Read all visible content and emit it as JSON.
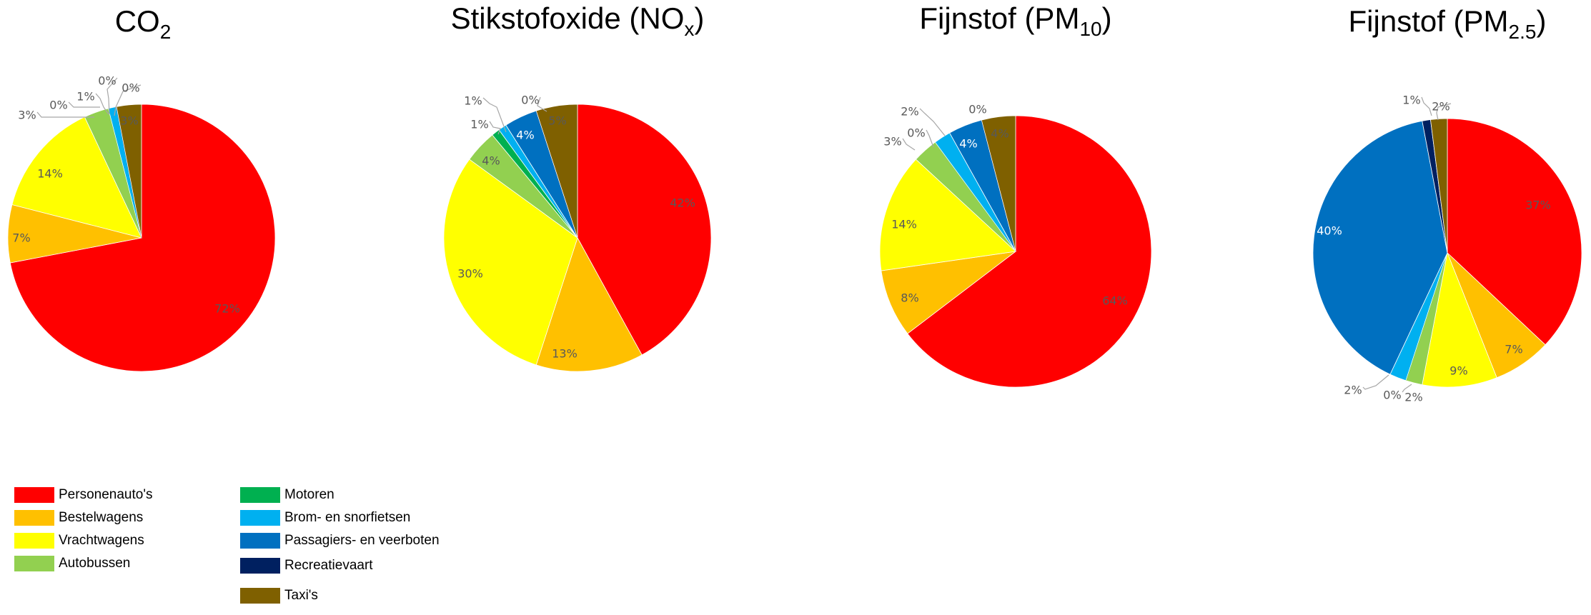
{
  "colors": {
    "personenautos": "#ff0000",
    "bestelwagens": "#ffc000",
    "vrachtwagens": "#ffff00",
    "autobussen": "#92d050",
    "motoren": "#00b050",
    "brom": "#00b0f0",
    "passagiers": "#0070c0",
    "recreatievaart": "#002060",
    "taxis": "#7f6000"
  },
  "legend": {
    "items": [
      {
        "key": "personenautos",
        "label": "Personenauto's"
      },
      {
        "key": "bestelwagens",
        "label": "Bestelwagens"
      },
      {
        "key": "vrachtwagens",
        "label": "Vrachtwagens"
      },
      {
        "key": "autobussen",
        "label": "Autobussen"
      },
      {
        "key": "motoren",
        "label": "Motoren"
      },
      {
        "key": "brom",
        "label": "Brom- en snorfietsen"
      },
      {
        "key": "passagiers",
        "label": "Passagiers- en veerboten"
      },
      {
        "key": "recreatievaart",
        "label": "Recreatievaart"
      },
      {
        "key": "taxis",
        "label": "Taxi's"
      }
    ]
  },
  "chart_data": [
    {
      "type": "pie",
      "title": "CO",
      "title_sub": "2",
      "categories": [
        "Personenauto's",
        "Bestelwagens",
        "Vrachtwagens",
        "Autobussen",
        "Motoren",
        "Brom- en snorfietsen",
        "Passagiers- en veerboten",
        "Recreatievaart",
        "Taxi's"
      ],
      "values": [
        72,
        7,
        14,
        3,
        0,
        1,
        0,
        0,
        3
      ],
      "data_labels": [
        "72%",
        "7%",
        "14%",
        "3%",
        "0%",
        "1%",
        "0%",
        "0%",
        "3%"
      ]
    },
    {
      "type": "pie",
      "title": "Stikstofoxide (NO",
      "title_sub": "x",
      "title_end": ")",
      "categories": [
        "Personenauto's",
        "Bestelwagens",
        "Vrachtwagens",
        "Autobussen",
        "Motoren",
        "Brom- en snorfietsen",
        "Passagiers- en veerboten",
        "Recreatievaart",
        "Taxi's"
      ],
      "values": [
        42,
        13,
        30,
        4,
        1,
        1,
        4,
        0,
        5
      ],
      "data_labels": [
        "42%",
        "13%",
        "30%",
        "4%",
        "1%",
        "1%",
        "4%",
        "0%",
        "5%"
      ]
    },
    {
      "type": "pie",
      "title": "Fijnstof (PM",
      "title_sub": "10",
      "title_end": ")",
      "categories": [
        "Personenauto's",
        "Bestelwagens",
        "Vrachtwagens",
        "Autobussen",
        "Motoren",
        "Brom- en snorfietsen",
        "Passagiers- en veerboten",
        "Recreatievaart",
        "Taxi's"
      ],
      "values": [
        64,
        8,
        14,
        3,
        0,
        2,
        4,
        0,
        4
      ],
      "data_labels": [
        "64%",
        "8%",
        "14%",
        "3%",
        "0%",
        "2%",
        "4%",
        "0%",
        "4%"
      ]
    },
    {
      "type": "pie",
      "title": "Fijnstof (PM",
      "title_sub": "2.5",
      "title_end": ")",
      "categories": [
        "Personenauto's",
        "Bestelwagens",
        "Vrachtwagens",
        "Autobussen",
        "Motoren",
        "Brom- en snorfietsen",
        "Passagiers- en veerboten",
        "Recreatievaart",
        "Taxi's"
      ],
      "values": [
        37,
        7,
        9,
        2,
        0,
        2,
        40,
        1,
        2
      ],
      "data_labels": [
        "37%",
        "7%",
        "9%",
        "2%",
        "0%",
        "2%",
        "40%",
        "1%",
        "2%"
      ]
    }
  ]
}
